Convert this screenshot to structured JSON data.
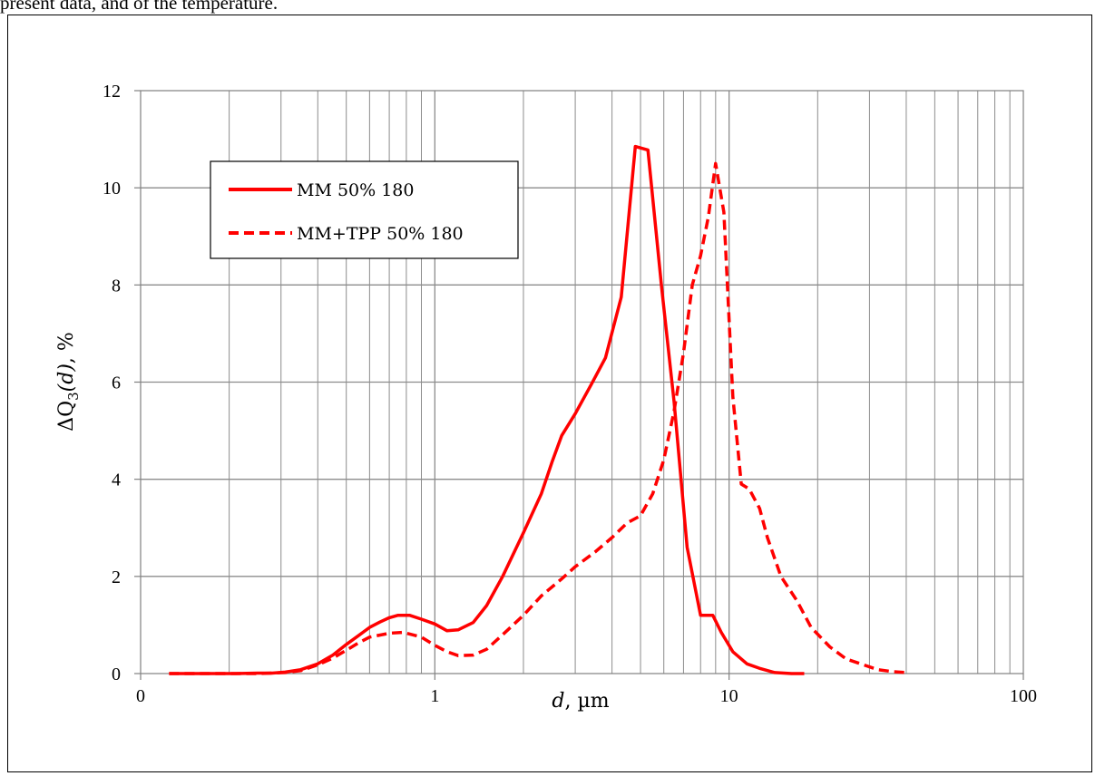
{
  "header_fragment": "present data, and of the temperature.",
  "chart_data": {
    "type": "line",
    "xscale": "log",
    "xlim": [
      0.1,
      100
    ],
    "ylim": [
      0,
      12
    ],
    "grid": true,
    "legend_placement": "top-left",
    "xlabel_italic": "d",
    "xlabel_unit": ", µm",
    "ylabel_prefix": "ΔQ",
    "ylabel_sub": "3",
    "ylabel_arg": "(d)",
    "ylabel_suffix": ", %",
    "x_tick_labels": [
      "0",
      "1",
      "10",
      "100"
    ],
    "y_tick_labels": [
      "0",
      "2",
      "4",
      "6",
      "8",
      "10",
      "12"
    ],
    "line_color": "#ff0000",
    "series": [
      {
        "name": "MM 50% 180",
        "style": "solid",
        "x": [
          0.125,
          0.15,
          0.18,
          0.21,
          0.25,
          0.28,
          0.31,
          0.35,
          0.4,
          0.45,
          0.5,
          0.55,
          0.6,
          0.65,
          0.7,
          0.75,
          0.82,
          0.9,
          1.0,
          1.1,
          1.2,
          1.35,
          1.5,
          1.7,
          2.0,
          2.3,
          2.5,
          2.7,
          3.0,
          3.4,
          3.8,
          4.3,
          4.8,
          5.3,
          5.9,
          6.5,
          7.2,
          8.0,
          8.8,
          9.4,
          10.3,
          11.5,
          12.8,
          14.3,
          16.3,
          18.0
        ],
        "y": [
          0.0,
          0.0,
          0.0,
          0.0,
          0.01,
          0.01,
          0.03,
          0.08,
          0.2,
          0.38,
          0.6,
          0.78,
          0.95,
          1.06,
          1.15,
          1.2,
          1.2,
          1.12,
          1.02,
          0.88,
          0.9,
          1.05,
          1.4,
          2.0,
          2.9,
          3.7,
          4.35,
          4.9,
          5.35,
          5.95,
          6.5,
          7.75,
          10.85,
          10.78,
          7.95,
          5.6,
          2.6,
          1.2,
          1.2,
          0.85,
          0.45,
          0.2,
          0.1,
          0.02,
          0.0,
          0.0
        ]
      },
      {
        "name": "MM+TPP 50% 180",
        "style": "dashed",
        "x": [
          0.125,
          0.18,
          0.25,
          0.31,
          0.35,
          0.4,
          0.45,
          0.5,
          0.55,
          0.6,
          0.7,
          0.78,
          0.9,
          1.0,
          1.1,
          1.2,
          1.35,
          1.5,
          1.7,
          2.0,
          2.3,
          2.7,
          3.0,
          3.5,
          4.0,
          4.5,
          5.0,
          5.5,
          6.0,
          6.5,
          7.0,
          7.5,
          8.0,
          8.5,
          9.0,
          9.6,
          10.3,
          11.0,
          11.7,
          12.7,
          13.5,
          15.0,
          17.0,
          19.0,
          22.0,
          25.0,
          28.0,
          32.0,
          36.0,
          40.0
        ],
        "y": [
          0.0,
          0.0,
          0.0,
          0.02,
          0.06,
          0.18,
          0.32,
          0.48,
          0.63,
          0.75,
          0.83,
          0.85,
          0.75,
          0.58,
          0.45,
          0.37,
          0.38,
          0.5,
          0.8,
          1.2,
          1.6,
          1.95,
          2.2,
          2.5,
          2.8,
          3.1,
          3.25,
          3.7,
          4.4,
          5.4,
          6.6,
          8.0,
          8.6,
          9.4,
          10.5,
          9.5,
          5.7,
          3.9,
          3.8,
          3.4,
          2.8,
          2.0,
          1.5,
          0.95,
          0.55,
          0.3,
          0.2,
          0.08,
          0.04,
          0.02
        ]
      }
    ]
  }
}
